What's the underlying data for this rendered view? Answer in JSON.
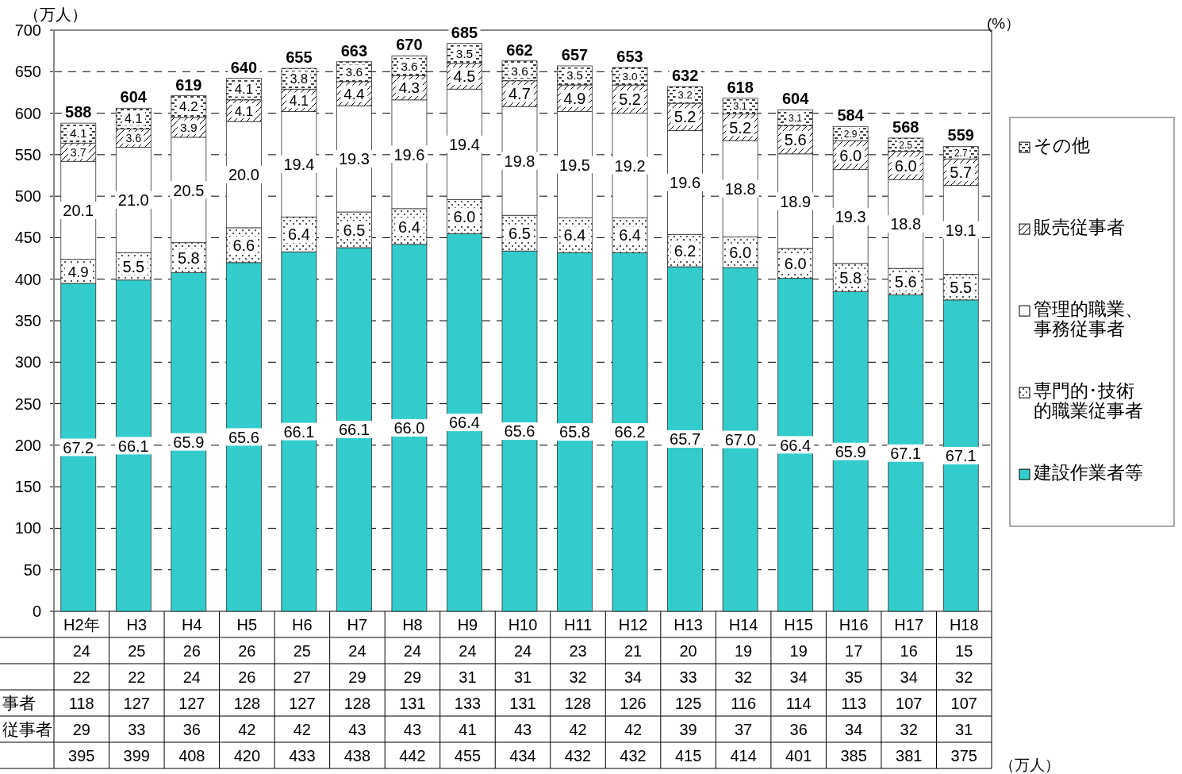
{
  "chart_data": {
    "type": "bar",
    "stacked": true,
    "ylabel": "（万人）",
    "y2label": "(%）",
    "categories": [
      "H2年",
      "H3",
      "H4",
      "H5",
      "H6",
      "H7",
      "H8",
      "H9",
      "H10",
      "H11",
      "H12",
      "H13",
      "H14",
      "H15",
      "H16",
      "H17",
      "H18"
    ],
    "ylim": [
      0,
      700
    ],
    "yticks": [
      0,
      50,
      100,
      150,
      200,
      250,
      300,
      350,
      400,
      450,
      500,
      550,
      600,
      650,
      700
    ],
    "grid": "y",
    "legend": "right",
    "data_labels": true,
    "totals": [
      "588",
      "604",
      "619",
      "640",
      "655",
      "663",
      "670",
      "685",
      "662",
      "657",
      "653",
      "632",
      "618",
      "604",
      "584",
      "568",
      "559"
    ],
    "series": [
      {
        "name": "建設作業者等",
        "color": "#33cccc",
        "values": [
          395,
          399,
          408,
          420,
          433,
          438,
          442,
          455,
          434,
          432,
          432,
          415,
          414,
          401,
          385,
          381,
          375
        ],
        "value_labels": [
          "395",
          "399",
          "408",
          "420",
          "433",
          "438",
          "442",
          "455",
          "434",
          "432",
          "432",
          "415",
          "414",
          "401",
          "385",
          "381",
          "375"
        ]
      },
      {
        "name": "専門的･技術的職業従事者",
        "color": "#ffffff",
        "values": [
          29,
          33,
          36,
          42,
          42,
          43,
          43,
          41,
          43,
          42,
          42,
          39,
          37,
          36,
          34,
          32,
          31
        ],
        "value_labels": [
          "29",
          "33",
          "36",
          "42",
          "42",
          "43",
          "43",
          "41",
          "43",
          "42",
          "42",
          "39",
          "37",
          "36",
          "34",
          "32",
          "31"
        ]
      },
      {
        "name": "管理的職業、事務従事者",
        "color": "#ffffff",
        "values": [
          118,
          127,
          127,
          128,
          127,
          128,
          131,
          133,
          131,
          128,
          126,
          125,
          116,
          114,
          113,
          107,
          107
        ],
        "value_labels": [
          "118",
          "127",
          "127",
          "128",
          "127",
          "128",
          "131",
          "133",
          "131",
          "128",
          "126",
          "125",
          "116",
          "114",
          "113",
          "107",
          "107"
        ]
      },
      {
        "name": "販売従事者",
        "color": "#ffffff",
        "values": [
          22,
          22,
          24,
          26,
          27,
          29,
          29,
          31,
          31,
          32,
          34,
          33,
          32,
          34,
          35,
          34,
          32
        ],
        "value_labels": [
          "22",
          "22",
          "24",
          "26",
          "27",
          "29",
          "29",
          "31",
          "31",
          "32",
          "34",
          "33",
          "32",
          "34",
          "35",
          "34",
          "32"
        ]
      },
      {
        "name": "その他",
        "color": "#ffffff",
        "values": [
          24,
          25,
          26,
          26,
          25,
          24,
          24,
          24,
          24,
          23,
          21,
          20,
          19,
          19,
          17,
          16,
          15
        ],
        "value_labels": [
          "24",
          "25",
          "26",
          "26",
          "25",
          "24",
          "24",
          "24",
          "24",
          "23",
          "21",
          "20",
          "19",
          "19",
          "17",
          "16",
          "15"
        ]
      }
    ],
    "annotations": [
      "（万人）",
      "事者",
      "従事者",
      "67.2",
      "4.9",
      "20.1",
      "3.7",
      "4.1",
      "66.1",
      "5.5",
      "21.0",
      "3.6",
      "4.1",
      "65.9",
      "5.8",
      "20.5",
      "3.9",
      "4.2",
      "65.6",
      "6.6",
      "20.0",
      "4.1",
      "4.1",
      "66.1",
      "6.4",
      "19.4",
      "4.1",
      "3.8",
      "66.1",
      "6.5",
      "19.3",
      "4.4",
      "3.6",
      "66.0",
      "6.4",
      "19.6",
      "4.3",
      "3.6",
      "66.4",
      "6.0",
      "19.4",
      "4.5",
      "3.5",
      "65.6",
      "6.5",
      "19.8",
      "4.7",
      "3.6",
      "65.8",
      "6.4",
      "19.5",
      "4.9",
      "3.5",
      "66.2",
      "6.4",
      "19.2",
      "5.2",
      "3.0",
      "65.7",
      "6.2",
      "19.6",
      "5.2",
      "3.2",
      "67.0",
      "6.0",
      "18.8",
      "5.2",
      "3.1",
      "66.4",
      "6.0",
      "18.9",
      "5.6",
      "3.1",
      "65.9",
      "5.8",
      "19.3",
      "6.0",
      "2.9",
      "67.1",
      "5.6",
      "18.8",
      "6.0",
      "2.5",
      "67.1",
      "5.5",
      "19.1",
      "5.7",
      "2.7"
    ]
  }
}
